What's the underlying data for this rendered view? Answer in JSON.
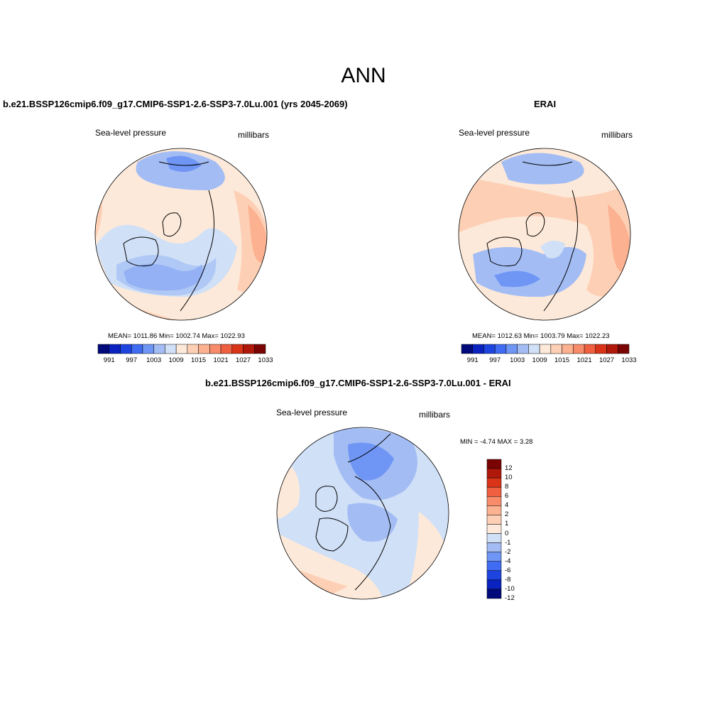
{
  "figure": {
    "title": "ANN"
  },
  "panels": [
    {
      "id": "model",
      "title": "b.e21.BSSP126cmip6.f09_g17.CMIP6-SSP1-2.6-SSP3-7.0Lu.001 (yrs 2045-2069)",
      "left_label": "Sea-level pressure",
      "right_label": "millibars",
      "stats": "MEAN= 1011.86  Min= 1002.74  Max= 1022.93"
    },
    {
      "id": "obs",
      "title": "ERAI",
      "left_label": "Sea-level pressure",
      "right_label": "millibars",
      "stats": "MEAN= 1012.63  Min= 1003.79  Max= 1022.23"
    },
    {
      "id": "diff",
      "title": "b.e21.BSSP126cmip6.f09_g17.CMIP6-SSP1-2.6-SSP3-7.0Lu.001 - ERAI",
      "left_label": "Sea-level pressure",
      "right_label": "millibars",
      "stats": "MIN =  -4.74 MAX =   3.28"
    }
  ],
  "colorbar_abs": {
    "tick_labels": [
      "991",
      "997",
      "1003",
      "1009",
      "1015",
      "1021",
      "1027",
      "1033"
    ],
    "colors": [
      "#000a7a",
      "#0a22c0",
      "#1e44e0",
      "#3f6cf2",
      "#6f95f5",
      "#a3bdf4",
      "#d0e0f7",
      "#fde9d9",
      "#fdd0b6",
      "#fcb191",
      "#f88c6a",
      "#ef5f40",
      "#d93418",
      "#b0180a",
      "#7a0403"
    ]
  },
  "colorbar_diff": {
    "tick_labels": [
      "12",
      "10",
      "8",
      "6",
      "4",
      "2",
      "1",
      "0",
      "-1",
      "-2",
      "-4",
      "-6",
      "-8",
      "-10",
      "-12"
    ],
    "colors": [
      "#7a0403",
      "#b0180a",
      "#d93418",
      "#ef5f40",
      "#f88c6a",
      "#fcb191",
      "#fdd0b6",
      "#fde9d9",
      "#d0e0f7",
      "#a3bdf4",
      "#6f95f5",
      "#3f6cf2",
      "#1e44e0",
      "#0a22c0",
      "#000a7a"
    ]
  },
  "map_colors": {
    "ocean_bg": "#fde9d9",
    "light_blue": "#d0e0f7",
    "mid_blue": "#a3bdf4",
    "blue": "#6f95f5",
    "light_red": "#fdd0b6",
    "red": "#fcb191",
    "deep_red": "#f88c6a"
  }
}
